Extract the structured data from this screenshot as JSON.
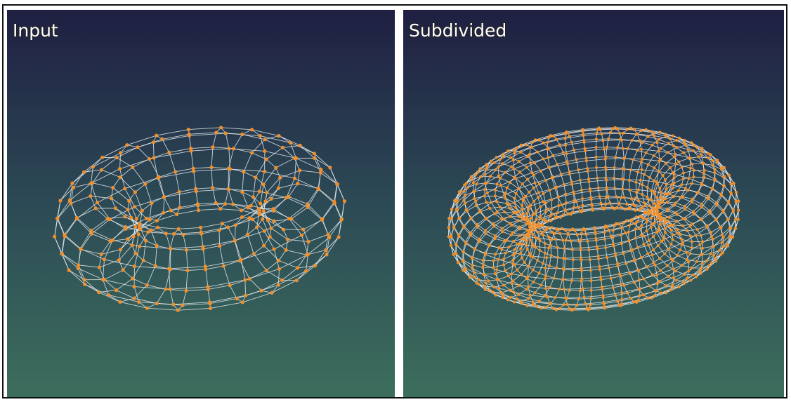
{
  "panels": [
    {
      "label": "Input"
    },
    {
      "label": "Subdivided"
    }
  ]
}
